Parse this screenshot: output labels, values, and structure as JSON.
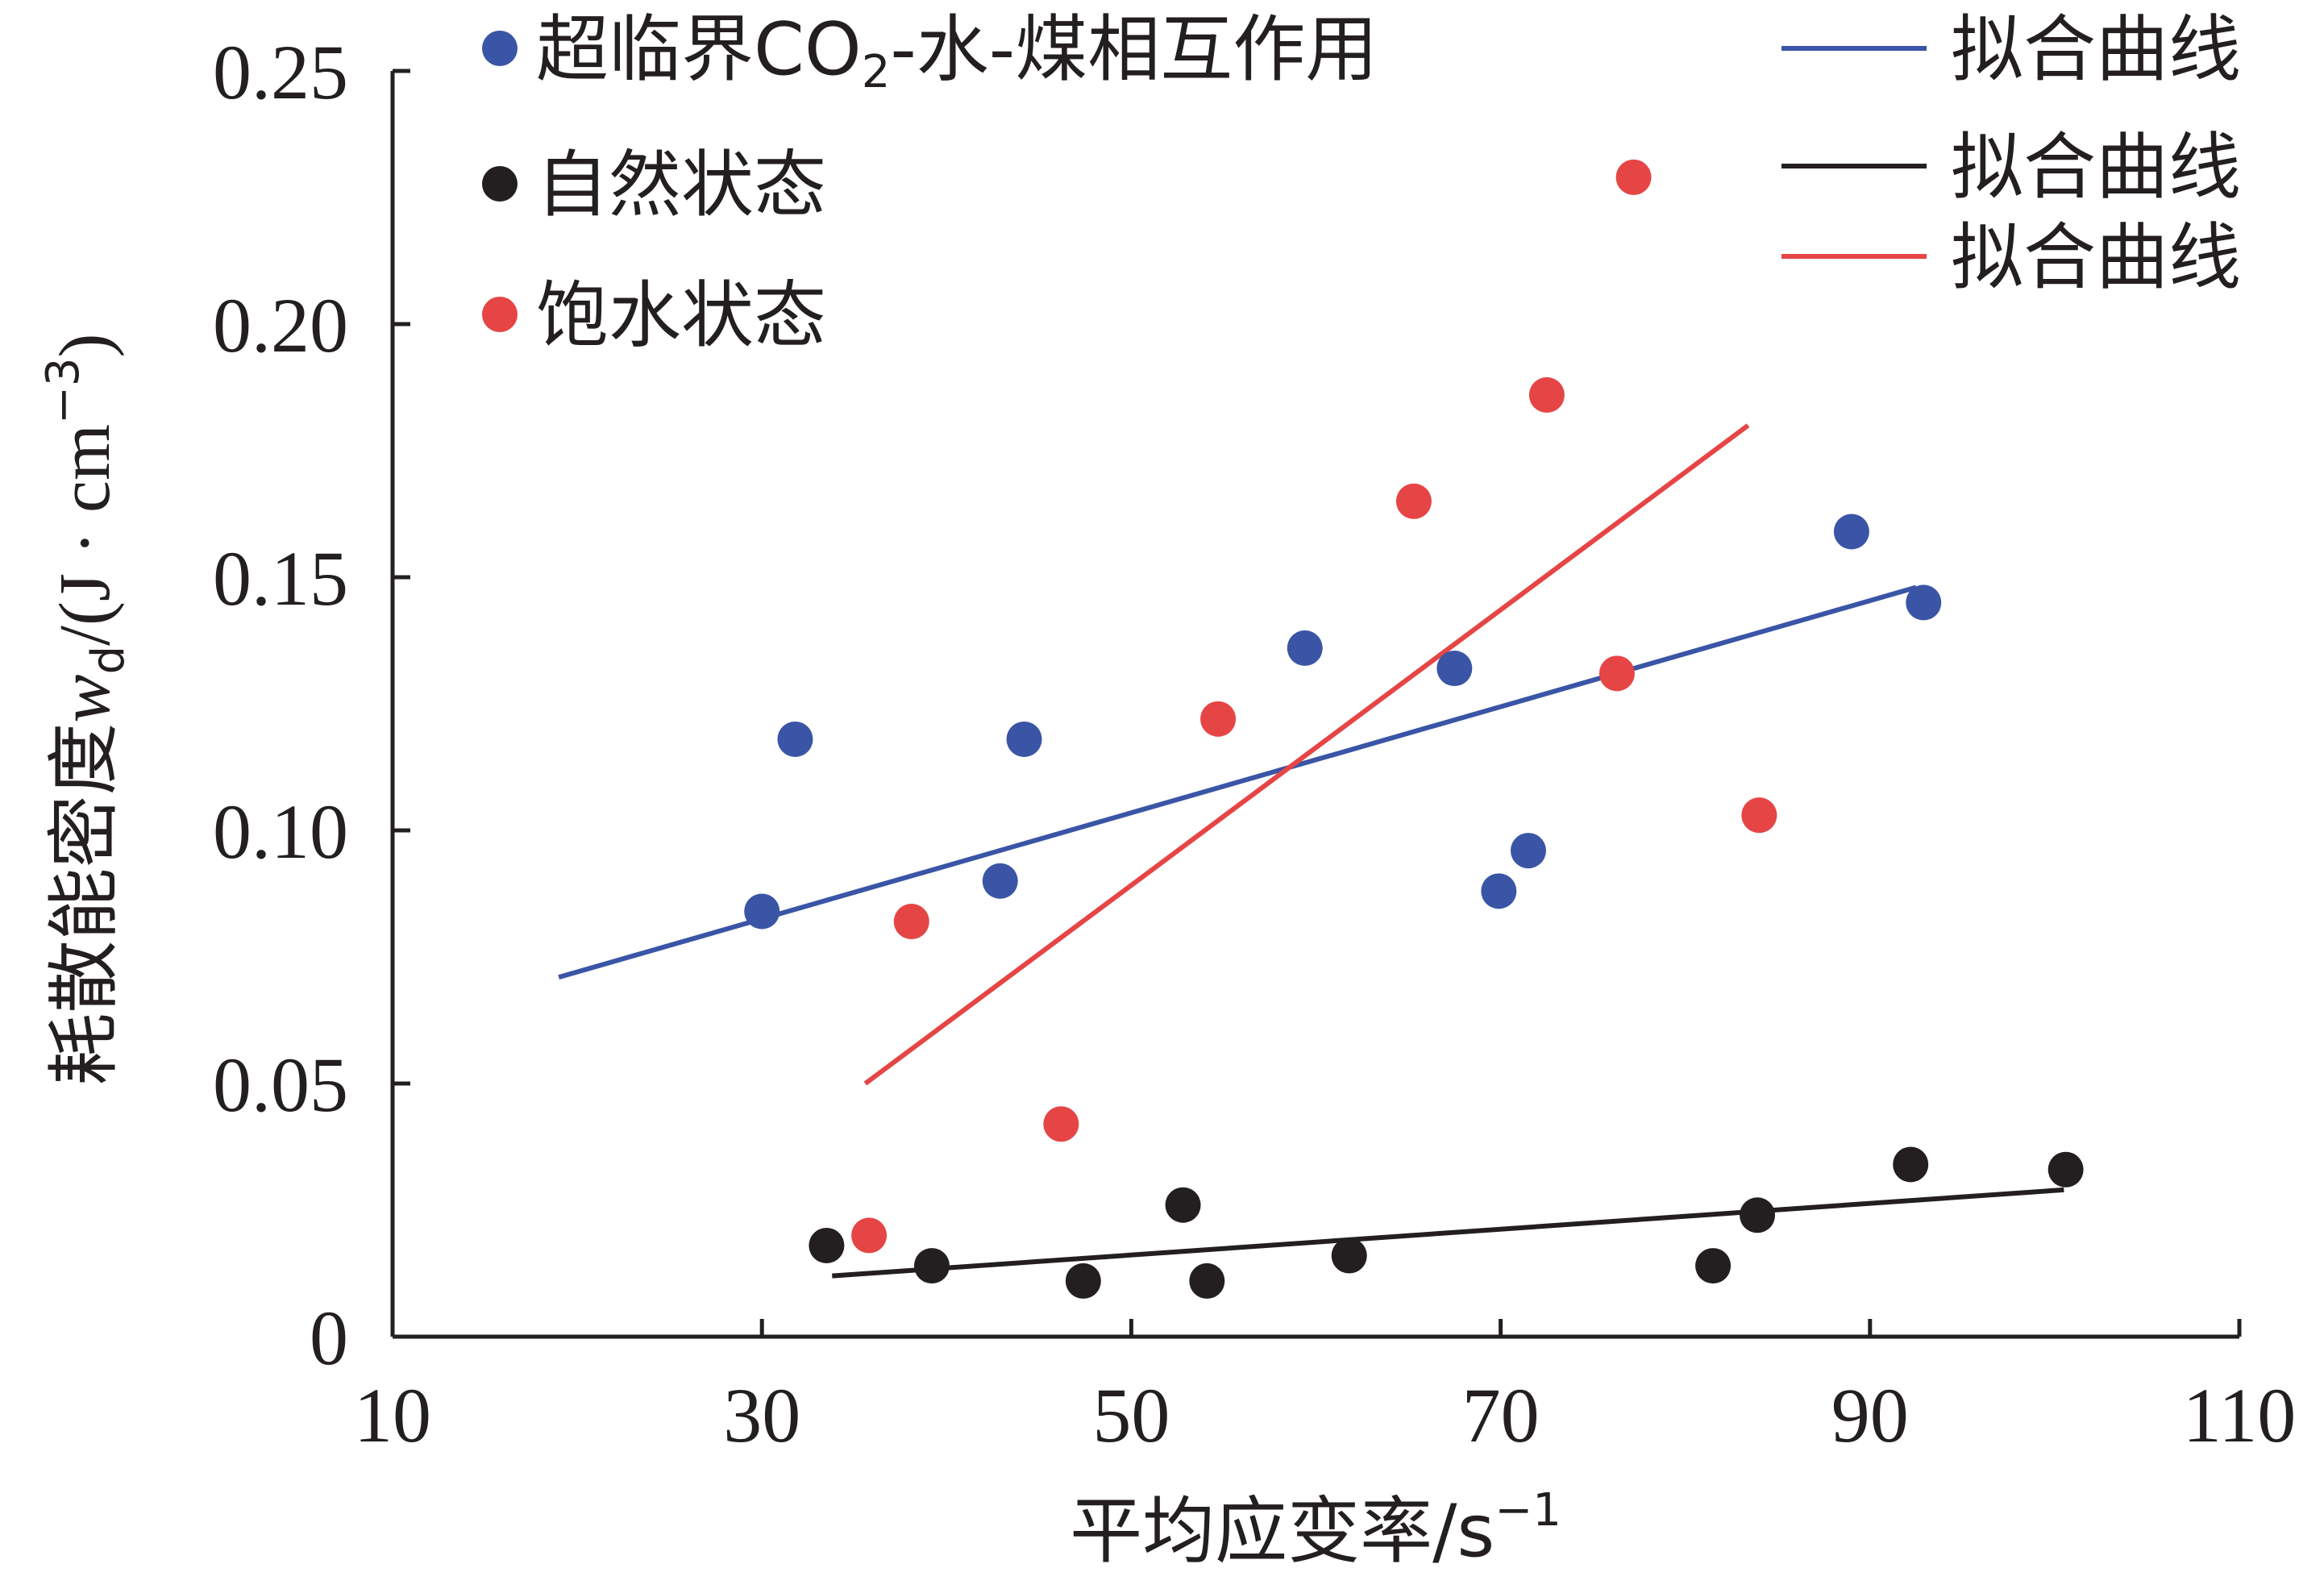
{
  "chart_data": {
    "type": "scatter",
    "xlabel": "平均应变率/s",
    "xlabel_sup": "−1",
    "ylabel_prefix": "耗散能密度",
    "ylabel_var": "w",
    "ylabel_sub": "d",
    "ylabel_unit_open": "/(J · cm",
    "ylabel_unit_sup": "−3",
    "ylabel_unit_close": ")",
    "xlim": [
      10,
      110
    ],
    "ylim": [
      0,
      0.25
    ],
    "xticks": [
      "10",
      "30",
      "50",
      "70",
      "90",
      "110"
    ],
    "yticks": [
      "0",
      "0.05",
      "0.10",
      "0.15",
      "0.20",
      "0.25"
    ],
    "series": [
      {
        "name": "超临界CO₂-水-煤相互作用",
        "name_parts": [
          "超临界CO",
          "2",
          "-水-煤相互作用"
        ],
        "color": "#3a55a6",
        "points": [
          [
            30.0,
            0.084
          ],
          [
            31.8,
            0.118
          ],
          [
            42.9,
            0.09
          ],
          [
            44.2,
            0.118
          ],
          [
            59.4,
            0.136
          ],
          [
            67.5,
            0.132
          ],
          [
            69.9,
            0.088
          ],
          [
            71.5,
            0.096
          ],
          [
            89.0,
            0.159
          ],
          [
            92.9,
            0.145
          ]
        ],
        "fit": [
          [
            19.0,
            0.071
          ],
          [
            92.5,
            0.148
          ]
        ],
        "fit_label": "拟合曲线"
      },
      {
        "name": "自然状态",
        "color": "#231f20",
        "points": [
          [
            33.5,
            0.018
          ],
          [
            39.2,
            0.014
          ],
          [
            47.4,
            0.011
          ],
          [
            52.8,
            0.026
          ],
          [
            54.1,
            0.011
          ],
          [
            61.8,
            0.016
          ],
          [
            81.5,
            0.014
          ],
          [
            83.9,
            0.024
          ],
          [
            92.2,
            0.034
          ],
          [
            100.6,
            0.033
          ]
        ],
        "fit": [
          [
            33.8,
            0.012
          ],
          [
            100.5,
            0.029
          ]
        ],
        "fit_label": "拟合曲线"
      },
      {
        "name": "饱水状态",
        "color": "#e64545",
        "points": [
          [
            35.8,
            0.02
          ],
          [
            38.1,
            0.082
          ],
          [
            46.2,
            0.042
          ],
          [
            54.7,
            0.122
          ],
          [
            65.3,
            0.165
          ],
          [
            72.5,
            0.186
          ],
          [
            76.3,
            0.131
          ],
          [
            77.2,
            0.229
          ],
          [
            84.0,
            0.103
          ]
        ],
        "fit": [
          [
            35.6,
            0.05
          ],
          [
            83.4,
            0.18
          ]
        ],
        "fit_label": "拟合曲线"
      }
    ],
    "legend_placement": "top"
  }
}
